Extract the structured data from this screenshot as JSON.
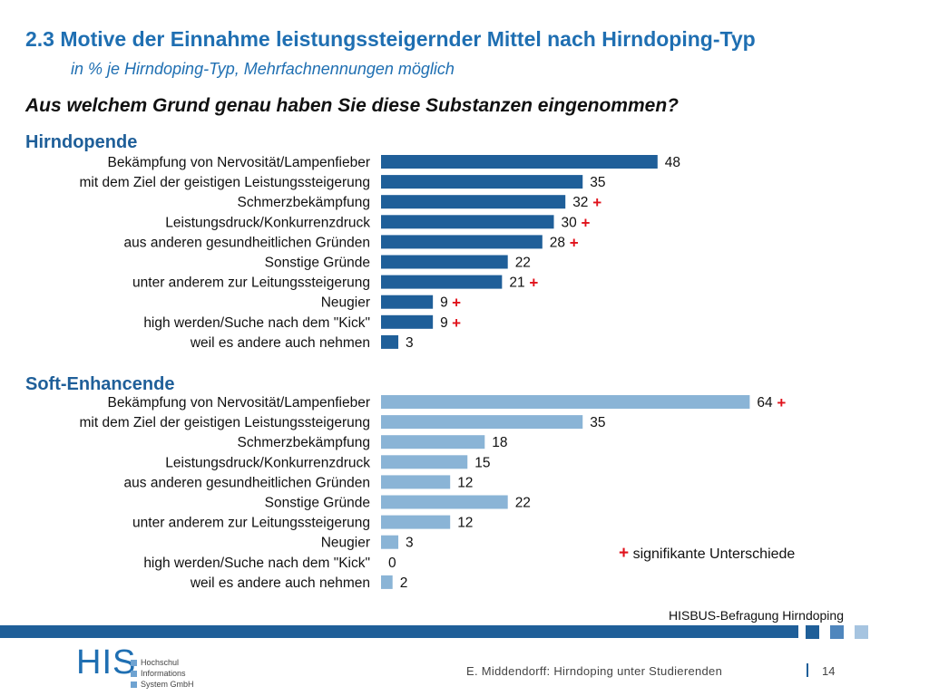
{
  "header": {
    "title": "2.3 Motive der Einnahme leistungssteigernder Mittel nach Hirndoping-Typ",
    "subtitle": "in % je Hirndoping-Typ, Mehrfachnennungen möglich",
    "question": "Aus welchem Grund genau haben Sie diese Substanzen eingenommen?"
  },
  "chart_data": [
    {
      "type": "bar",
      "orientation": "horizontal",
      "title": "Hirndopende",
      "categories": [
        "Bekämpfung von Nervosität/Lampenfieber",
        "mit dem Ziel der geistigen Leistungssteigerung",
        "Schmerzbekämpfung",
        "Leistungsdruck/Konkurrenzdruck",
        "aus anderen gesundheitlichen Gründen",
        "Sonstige Gründe",
        "unter anderem zur Leitungssteigerung",
        "Neugier",
        "high werden/Suche nach dem \"Kick\"",
        "weil es andere auch nehmen"
      ],
      "values": [
        48,
        35,
        32,
        30,
        28,
        22,
        21,
        9,
        9,
        3
      ],
      "significant": [
        false,
        false,
        true,
        true,
        true,
        false,
        true,
        true,
        true,
        false
      ],
      "color": "#1f5f99"
    },
    {
      "type": "bar",
      "orientation": "horizontal",
      "title": "Soft-Enhancende",
      "categories": [
        "Bekämpfung von Nervosität/Lampenfieber",
        "mit dem Ziel der geistigen Leistungssteigerung",
        "Schmerzbekämpfung",
        "Leistungsdruck/Konkurrenzdruck",
        "aus anderen gesundheitlichen Gründen",
        "Sonstige Gründe",
        "unter anderem zur Leitungssteigerung",
        "Neugier",
        "high werden/Suche nach dem \"Kick\"",
        "weil es andere auch nehmen"
      ],
      "values": [
        64,
        35,
        18,
        15,
        12,
        22,
        12,
        3,
        0,
        2
      ],
      "significant": [
        true,
        false,
        false,
        false,
        false,
        false,
        false,
        false,
        false,
        false
      ],
      "color": "#8ab4d6"
    }
  ],
  "legend": {
    "symbol": "+",
    "text": "signifikante Unterschiede"
  },
  "source": "HISBUS-Befragung Hirndoping",
  "logo": {
    "text": "HIS",
    "lines": [
      "Hochschul",
      "Informations",
      "System GmbH"
    ]
  },
  "footer": {
    "text": "E. Middendorff: Hirndoping unter Studierenden",
    "page": "14"
  },
  "colors": {
    "accent": "#1f6fb2",
    "dark_bar": "#1f5f99",
    "light_bar": "#8ab4d6",
    "significance": "#e0121b"
  }
}
